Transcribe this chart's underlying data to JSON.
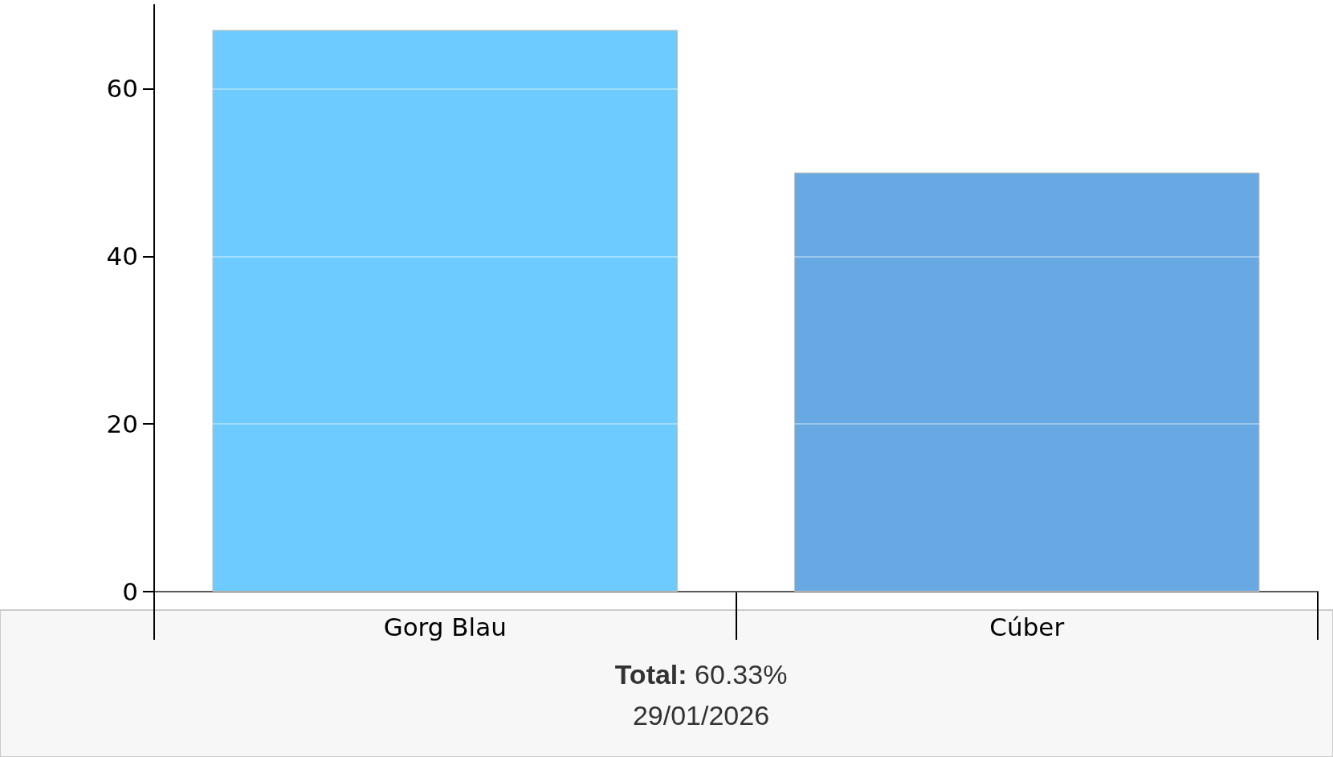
{
  "chart_data": {
    "type": "bar",
    "categories": [
      "Gorg Blau",
      "Cúber"
    ],
    "values": [
      67,
      50
    ],
    "colors": [
      "#6ecbff",
      "#68a9e3"
    ],
    "ylim": [
      0,
      70
    ],
    "yticks": [
      0,
      20,
      40,
      60
    ],
    "grid": "y",
    "annotations": [
      "Total: 60.33%",
      "29/01/2026"
    ]
  }
}
